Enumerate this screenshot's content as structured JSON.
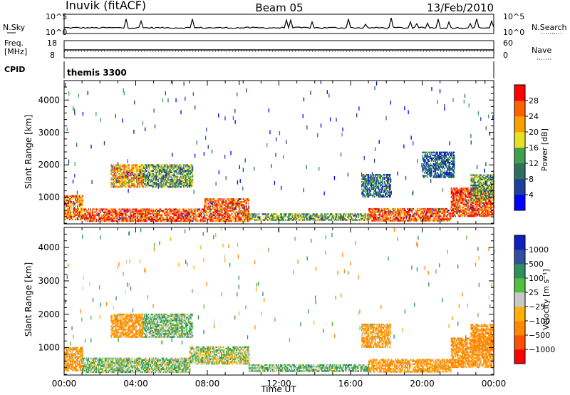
{
  "header": {
    "station": "Inuvik (fitACF)",
    "beam": "Beam 05",
    "date": "13/Feb/2010"
  },
  "meta_panels": {
    "nsky_label": "N.Sky",
    "nsky_ticks": [
      "10^5",
      "10^0"
    ],
    "nsearch_label": "N.Search",
    "nsearch_ticks": [
      "10^5",
      "10^0"
    ],
    "freq_label": "Freq.",
    "freq_unit": "[MHz]",
    "freq_ticks": [
      "18",
      "8"
    ],
    "nave_label": "Nave",
    "nave_ticks": [
      "60",
      "0"
    ],
    "cpid_label": "CPID",
    "cpid_value": "themis 3300"
  },
  "chart_data": [
    {
      "type": "heatmap",
      "name": "power-panel",
      "xlabel": "",
      "ylabel": "Slant Range [km]",
      "xlim": [
        0,
        24
      ],
      "ylim": [
        180,
        4600
      ],
      "yticks": [
        "1000",
        "2000",
        "3000",
        "4000"
      ],
      "colorbar": {
        "label": "Power [dB]",
        "ticks": [
          "28",
          "24",
          "20",
          "16",
          "12",
          "8",
          "4"
        ],
        "colors": [
          "#0000ff",
          "#1f3f9f",
          "#2f6f5f",
          "#3fa04f",
          "#e8e020",
          "#f8a000",
          "#ff6000",
          "#ff0000"
        ]
      },
      "regions": [
        {
          "t": [
            0.0,
            1.0
          ],
          "r": [
            300,
            1050
          ],
          "level": 24
        },
        {
          "t": [
            1.0,
            7.8
          ],
          "r": [
            250,
            650
          ],
          "level": 27
        },
        {
          "t": [
            7.8,
            10.3
          ],
          "r": [
            250,
            950
          ],
          "level": 26
        },
        {
          "t": [
            10.3,
            17.0
          ],
          "r": [
            280,
            500
          ],
          "level": 15
        },
        {
          "t": [
            17.0,
            21.6
          ],
          "r": [
            260,
            650
          ],
          "level": 26
        },
        {
          "t": [
            21.6,
            24.0
          ],
          "r": [
            400,
            1300
          ],
          "level": 27
        },
        {
          "t": [
            2.6,
            4.4
          ],
          "r": [
            1300,
            2000
          ],
          "level": 22
        },
        {
          "t": [
            4.4,
            7.2
          ],
          "r": [
            1300,
            2000
          ],
          "level": 14
        },
        {
          "t": [
            16.6,
            18.2
          ],
          "r": [
            1000,
            1700
          ],
          "level": 10
        },
        {
          "t": [
            20.0,
            21.8
          ],
          "r": [
            1600,
            2400
          ],
          "level": 9
        },
        {
          "t": [
            22.7,
            24.0
          ],
          "r": [
            900,
            1700
          ],
          "level": 14
        }
      ]
    },
    {
      "type": "heatmap",
      "name": "velocity-panel",
      "xlabel": "Time UT",
      "ylabel": "Slant Range [km]",
      "xlim": [
        0,
        24
      ],
      "ylim": [
        180,
        4600
      ],
      "xticks": [
        "00:00",
        "04:00",
        "08:00",
        "12:00",
        "16:00",
        "20:00",
        "00:00"
      ],
      "yticks": [
        "1000",
        "2000",
        "3000",
        "4000"
      ],
      "colorbar": {
        "label": "Velocity [m s⁻¹]",
        "ticks": [
          "1000",
          "500",
          "100",
          "25",
          "−25",
          "−100",
          "−500",
          "−1000"
        ],
        "colors": [
          "#ff0000",
          "#ff5000",
          "#ff8800",
          "#ffb000",
          "#c8c8c8",
          "#50c040",
          "#2f8f5f",
          "#2f4fa0",
          "#1020c0"
        ]
      },
      "regions": [
        {
          "t": [
            0.0,
            1.0
          ],
          "r": [
            300,
            1000
          ],
          "level": -150
        },
        {
          "t": [
            1.0,
            7.0
          ],
          "r": [
            250,
            700
          ],
          "level": 60
        },
        {
          "t": [
            7.0,
            10.3
          ],
          "r": [
            500,
            1000
          ],
          "level": 10
        },
        {
          "t": [
            10.3,
            17.0
          ],
          "r": [
            280,
            500
          ],
          "level": 80
        },
        {
          "t": [
            17.0,
            21.6
          ],
          "r": [
            260,
            650
          ],
          "level": -150
        },
        {
          "t": [
            21.6,
            24.0
          ],
          "r": [
            400,
            1300
          ],
          "level": -200
        },
        {
          "t": [
            2.6,
            4.4
          ],
          "r": [
            1300,
            2000
          ],
          "level": -150
        },
        {
          "t": [
            4.4,
            7.2
          ],
          "r": [
            1300,
            2000
          ],
          "level": 80
        },
        {
          "t": [
            16.6,
            18.2
          ],
          "r": [
            1000,
            1700
          ],
          "level": -120
        },
        {
          "t": [
            22.7,
            24.0
          ],
          "r": [
            900,
            1700
          ],
          "level": -200
        }
      ]
    }
  ]
}
